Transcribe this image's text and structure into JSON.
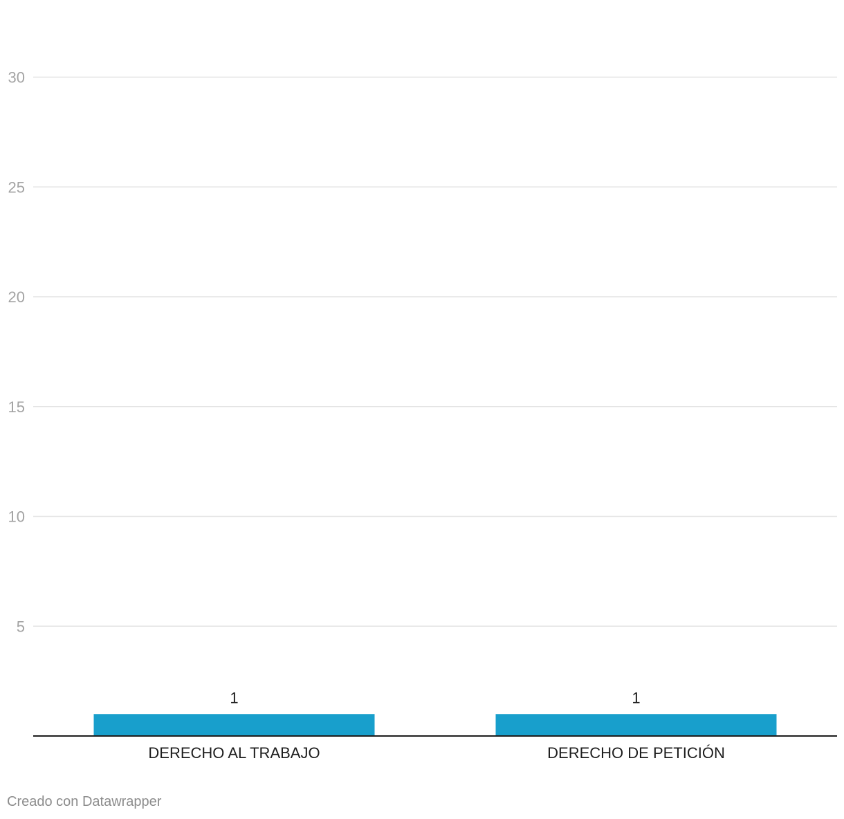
{
  "chart_data": {
    "type": "bar",
    "categories": [
      "DERECHO AL TRABAJO",
      "DERECHO DE PETICIÓN"
    ],
    "values": [
      1,
      1
    ],
    "title": "",
    "xlabel": "",
    "ylabel": "",
    "ylim": [
      0,
      30
    ],
    "yticks": [
      5,
      10,
      15,
      20,
      25,
      30
    ],
    "grid": true,
    "bar_color": "#189fcc",
    "gridline_color": "#e3e3e3",
    "baseline_color": "#1d1d1d"
  },
  "footer": {
    "credit": "Creado con Datawrapper"
  }
}
